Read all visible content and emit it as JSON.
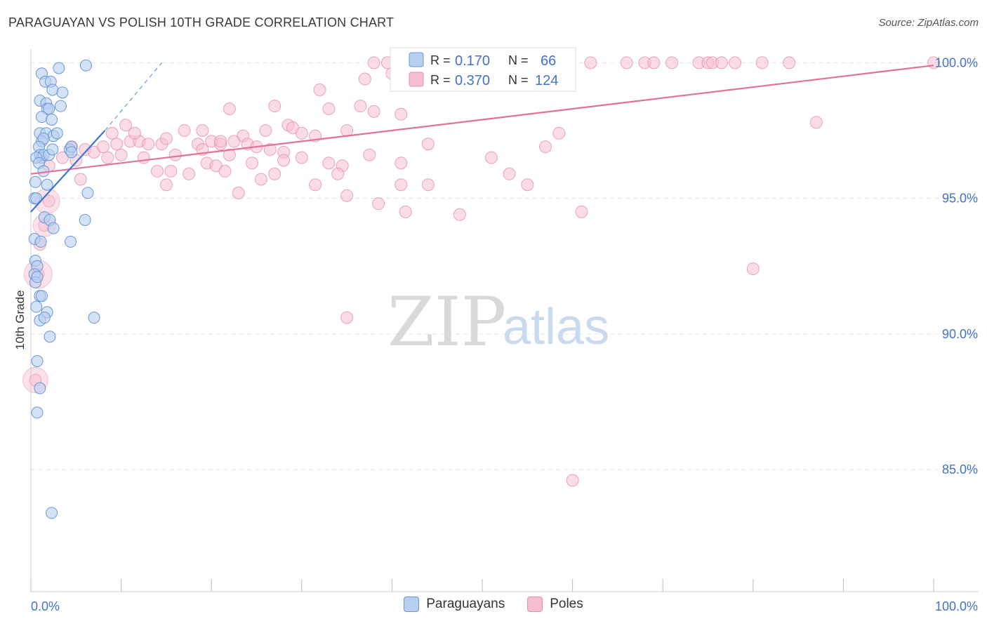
{
  "title": "PARAGUAYAN VS POLISH 10TH GRADE CORRELATION CHART",
  "source": "Source: ZipAtlas.com",
  "watermark": {
    "zip": "ZIP",
    "atlas": "atlas"
  },
  "colors": {
    "blue_fill": "#b8cff0",
    "blue_stroke": "#6a97d8",
    "blue_line": "#3b74d1",
    "pink_fill": "#f6bfd0",
    "pink_stroke": "#e58fad",
    "pink_line": "#e3709a",
    "grid": "#e3e3e3",
    "accent_text": "#4472c4"
  },
  "legend": {
    "r_label": "R =",
    "n_label": "N =",
    "blue": {
      "r": "0.170",
      "n": "66"
    },
    "pink": {
      "r": "0.370",
      "n": "124"
    }
  },
  "bottom_legend": {
    "blue": "Paraguayans",
    "pink": "Poles"
  },
  "chart_data": {
    "type": "scatter",
    "title": "PARAGUAYAN VS POLISH 10TH GRADE CORRELATION CHART",
    "xlabel": "",
    "ylabel": "10th Grade",
    "xlim": [
      0,
      100
    ],
    "ylim": [
      80.5,
      100.5
    ],
    "x_tick_labels": [
      "0.0%",
      "100.0%"
    ],
    "y_ticks": [
      85,
      90,
      95,
      100
    ],
    "y_tick_labels": [
      "85.0%",
      "90.0%",
      "95.0%",
      "100.0%"
    ],
    "grid": true,
    "legend_position": "top-center",
    "series": [
      {
        "name": "Paraguayans",
        "color": "#6a97d8",
        "trend": {
          "x": [
            0,
            8.2
          ],
          "y": [
            94.5,
            97.5
          ],
          "dashed_to": [
            14.5,
            100.0
          ]
        },
        "points": [
          [
            1.2,
            99.6
          ],
          [
            3.1,
            99.8
          ],
          [
            6.1,
            99.9
          ],
          [
            1.6,
            99.3
          ],
          [
            2.2,
            99.3
          ],
          [
            2.4,
            99.0
          ],
          [
            3.5,
            98.9
          ],
          [
            1.0,
            98.6
          ],
          [
            1.7,
            98.5
          ],
          [
            1.8,
            98.3
          ],
          [
            2.0,
            98.3
          ],
          [
            3.3,
            98.4
          ],
          [
            1.2,
            98.0
          ],
          [
            2.3,
            97.9
          ],
          [
            1.0,
            97.4
          ],
          [
            1.7,
            97.4
          ],
          [
            2.5,
            97.3
          ],
          [
            2.9,
            97.4
          ],
          [
            1.2,
            97.1
          ],
          [
            1.4,
            97.2
          ],
          [
            0.9,
            96.9
          ],
          [
            4.3,
            96.8
          ],
          [
            4.5,
            96.9
          ],
          [
            1.0,
            96.6
          ],
          [
            1.2,
            96.5
          ],
          [
            1.4,
            96.6
          ],
          [
            2.0,
            96.6
          ],
          [
            2.4,
            96.8
          ],
          [
            0.6,
            96.5
          ],
          [
            0.9,
            96.3
          ],
          [
            1.4,
            96.0
          ],
          [
            4.5,
            96.7
          ],
          [
            0.5,
            95.6
          ],
          [
            1.8,
            95.5
          ],
          [
            6.3,
            95.2
          ],
          [
            0.4,
            95.0
          ],
          [
            0.6,
            95.0
          ],
          [
            1.5,
            94.3
          ],
          [
            2.1,
            94.2
          ],
          [
            6.0,
            94.2
          ],
          [
            2.5,
            93.9
          ],
          [
            0.4,
            93.5
          ],
          [
            1.1,
            93.4
          ],
          [
            4.4,
            93.4
          ],
          [
            0.5,
            92.7
          ],
          [
            0.7,
            92.5
          ],
          [
            0.4,
            92.2
          ],
          [
            0.5,
            91.9
          ],
          [
            0.7,
            92.1
          ],
          [
            1.0,
            91.4
          ],
          [
            1.2,
            91.4
          ],
          [
            0.6,
            91.0
          ],
          [
            1.8,
            90.8
          ],
          [
            1.0,
            90.5
          ],
          [
            1.5,
            90.6
          ],
          [
            7.0,
            90.6
          ],
          [
            2.1,
            89.9
          ],
          [
            0.7,
            89.0
          ],
          [
            1.0,
            88.0
          ],
          [
            0.7,
            87.1
          ],
          [
            2.3,
            83.4
          ]
        ]
      },
      {
        "name": "Poles",
        "color": "#e58fad",
        "trend": {
          "x": [
            0,
            100
          ],
          "y": [
            95.9,
            99.9
          ]
        },
        "points": [
          [
            38.0,
            100.0
          ],
          [
            39.5,
            100.0
          ],
          [
            41.0,
            100.0
          ],
          [
            42.5,
            100.0
          ],
          [
            44.0,
            100.0
          ],
          [
            45.5,
            100.0
          ],
          [
            47.0,
            100.0
          ],
          [
            48.5,
            100.0
          ],
          [
            50.0,
            100.0
          ],
          [
            51.5,
            100.0
          ],
          [
            53.0,
            100.0
          ],
          [
            54.5,
            100.0
          ],
          [
            56.0,
            100.0
          ],
          [
            58.0,
            100.0
          ],
          [
            62.0,
            100.0
          ],
          [
            66.0,
            100.0
          ],
          [
            68.0,
            100.0
          ],
          [
            69.0,
            100.0
          ],
          [
            71.0,
            100.0
          ],
          [
            74.0,
            100.0
          ],
          [
            75.0,
            100.0
          ],
          [
            75.5,
            100.0
          ],
          [
            76.5,
            100.0
          ],
          [
            78.0,
            100.0
          ],
          [
            81.0,
            100.0
          ],
          [
            84.0,
            100.0
          ],
          [
            100.0,
            100.0
          ],
          [
            58.0,
            99.8
          ],
          [
            37.0,
            99.4
          ],
          [
            40.0,
            99.6
          ],
          [
            55.0,
            99.4
          ],
          [
            32.0,
            99.0
          ],
          [
            22.0,
            98.3
          ],
          [
            27.0,
            98.4
          ],
          [
            33.0,
            98.3
          ],
          [
            36.5,
            98.4
          ],
          [
            38.0,
            98.2
          ],
          [
            41.0,
            98.1
          ],
          [
            87.0,
            97.8
          ],
          [
            10.5,
            97.7
          ],
          [
            14.5,
            97.0
          ],
          [
            17.0,
            97.5
          ],
          [
            19.0,
            97.5
          ],
          [
            23.5,
            97.3
          ],
          [
            26.0,
            97.5
          ],
          [
            28.5,
            97.7
          ],
          [
            29.0,
            97.6
          ],
          [
            30.0,
            97.4
          ],
          [
            31.5,
            97.3
          ],
          [
            35.0,
            97.5
          ],
          [
            58.5,
            97.4
          ],
          [
            9.0,
            97.4
          ],
          [
            11.0,
            97.1
          ],
          [
            12.0,
            97.1
          ],
          [
            13.0,
            97.0
          ],
          [
            15.0,
            97.2
          ],
          [
            18.5,
            97.0
          ],
          [
            20.0,
            97.1
          ],
          [
            21.0,
            97.0
          ],
          [
            22.5,
            97.1
          ],
          [
            24.0,
            97.0
          ],
          [
            25.0,
            96.9
          ],
          [
            26.5,
            96.8
          ],
          [
            28.0,
            96.7
          ],
          [
            44.0,
            97.0
          ],
          [
            57.0,
            96.9
          ],
          [
            6.0,
            96.8
          ],
          [
            7.0,
            96.7
          ],
          [
            8.0,
            96.9
          ],
          [
            8.5,
            96.5
          ],
          [
            10.0,
            96.6
          ],
          [
            12.5,
            96.5
          ],
          [
            16.0,
            96.6
          ],
          [
            19.5,
            96.3
          ],
          [
            22.0,
            96.6
          ],
          [
            24.5,
            96.3
          ],
          [
            28.0,
            96.4
          ],
          [
            30.0,
            96.5
          ],
          [
            33.0,
            96.3
          ],
          [
            34.5,
            96.2
          ],
          [
            37.5,
            96.6
          ],
          [
            41.0,
            96.3
          ],
          [
            51.0,
            96.5
          ],
          [
            4.5,
            96.9
          ],
          [
            5.0,
            96.4
          ],
          [
            3.5,
            96.5
          ],
          [
            2.0,
            96.2
          ],
          [
            14.0,
            96.0
          ],
          [
            15.5,
            96.0
          ],
          [
            17.5,
            95.9
          ],
          [
            20.5,
            96.2
          ],
          [
            21.5,
            96.0
          ],
          [
            25.5,
            95.7
          ],
          [
            27.0,
            95.9
          ],
          [
            31.5,
            95.5
          ],
          [
            34.0,
            95.9
          ],
          [
            41.0,
            95.5
          ],
          [
            44.0,
            95.5
          ],
          [
            53.0,
            95.9
          ],
          [
            5.5,
            95.7
          ],
          [
            15.0,
            95.5
          ],
          [
            23.0,
            95.2
          ],
          [
            35.0,
            95.1
          ],
          [
            38.5,
            94.8
          ],
          [
            41.5,
            94.5
          ],
          [
            47.5,
            94.4
          ],
          [
            55.0,
            95.5
          ],
          [
            61.0,
            94.5
          ],
          [
            2.0,
            94.9
          ],
          [
            1.5,
            94.0
          ],
          [
            1.0,
            93.3
          ],
          [
            0.8,
            92.2
          ],
          [
            80.0,
            92.4
          ],
          [
            35.0,
            90.6
          ],
          [
            0.5,
            88.3
          ],
          [
            60.0,
            84.6
          ],
          [
            11.5,
            97.4
          ],
          [
            19.0,
            96.8
          ],
          [
            21.0,
            97.1
          ],
          [
            9.5,
            97.0
          ]
        ]
      }
    ],
    "r_values": {
      "Paraguayans": 0.17,
      "Poles": 0.37
    },
    "n_values": {
      "Paraguayans": 66,
      "Poles": 124
    }
  }
}
